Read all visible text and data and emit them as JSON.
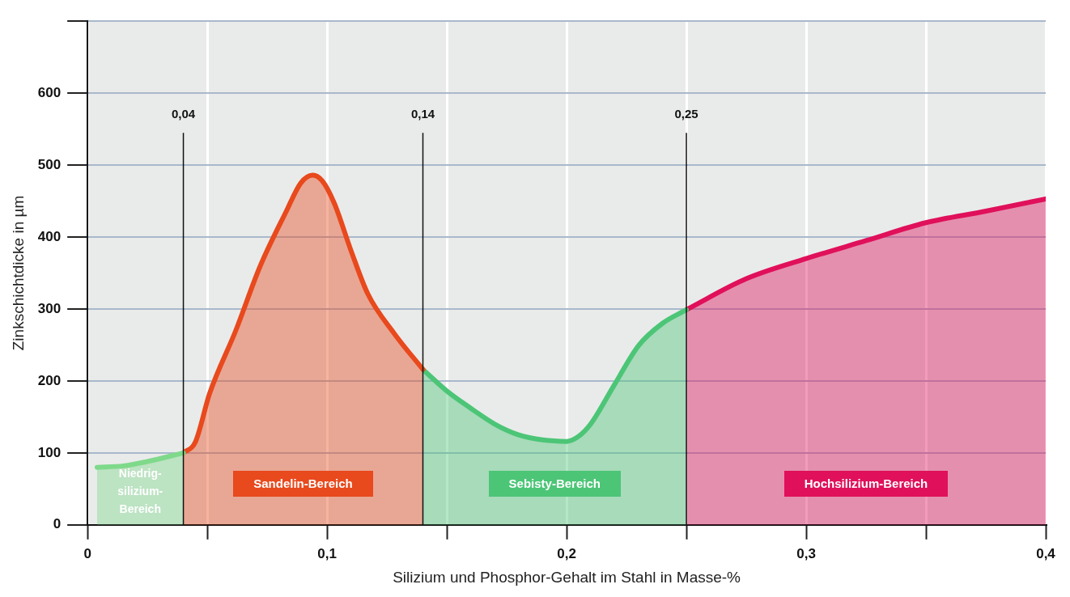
{
  "chart_data": {
    "type": "area",
    "xlabel": "Silizium und Phosphor-Gehalt im Stahl in Masse-%",
    "ylabel": "Zinkschichtdicke in µm",
    "xlim": [
      0,
      0.4
    ],
    "xticks": [
      0,
      {
        "value": 0.05,
        "label": null
      },
      {
        "value": 0.1,
        "label": "0,1"
      },
      {
        "value": 0.15,
        "label": null
      },
      {
        "value": 0.2,
        "label": "0,2"
      },
      {
        "value": 0.25,
        "label": null
      },
      {
        "value": 0.3,
        "label": "0,3"
      },
      {
        "value": 0.35,
        "label": null
      },
      {
        "value": 0.4,
        "label": "0,4"
      }
    ],
    "ylim": [
      0,
      700
    ],
    "yticks": [
      0,
      100,
      200,
      300,
      400,
      500,
      600,
      {
        "value": 700,
        "label": null
      }
    ],
    "grid": true,
    "series": [
      {
        "name": "Niedrig-silizium-Bereich",
        "color": "#7fd98a",
        "x": [
          0.004,
          0.015,
          0.025,
          0.04
        ],
        "values": [
          80,
          82,
          88,
          100
        ]
      },
      {
        "name": "Sandelin-Bereich",
        "color": "#e8491d",
        "x": [
          0.04,
          0.045,
          0.051,
          0.062,
          0.072,
          0.083,
          0.089,
          0.094,
          0.098,
          0.103,
          0.11,
          0.117,
          0.128,
          0.14
        ],
        "values": [
          100,
          115,
          183,
          271,
          359,
          436,
          475,
          486,
          478,
          447,
          381,
          321,
          266,
          216
        ]
      },
      {
        "name": "Sebisty-Bereich",
        "color": "#4cc577",
        "x": [
          0.14,
          0.15,
          0.16,
          0.17,
          0.18,
          0.19,
          0.2,
          0.205,
          0.21,
          0.22,
          0.23,
          0.24,
          0.25
        ],
        "values": [
          216,
          186,
          162,
          140,
          125,
          118,
          116,
          123,
          140,
          195,
          249,
          280,
          299
        ]
      },
      {
        "name": "Hochsilizium-Bereich",
        "color": "#e0105a",
        "x": [
          0.25,
          0.275,
          0.3,
          0.325,
          0.35,
          0.375,
          0.4
        ],
        "values": [
          299,
          342,
          370,
          395,
          420,
          436,
          453
        ]
      }
    ],
    "ref_lines": [
      {
        "axis": "x",
        "value": 0.04,
        "label": "0,04"
      },
      {
        "axis": "x",
        "value": 0.14,
        "label": "0,14"
      },
      {
        "axis": "x",
        "value": 0.25,
        "label": "0,25"
      }
    ]
  }
}
